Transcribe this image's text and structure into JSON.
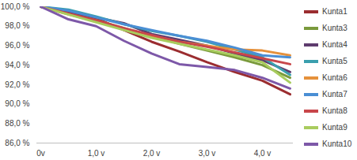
{
  "chart_data": {
    "type": "line",
    "categories": [
      "0v",
      null,
      "1,0 v",
      null,
      "2,0 v",
      null,
      "3,0 v",
      null,
      "4,0 v",
      null
    ],
    "ylim": [
      86,
      100
    ],
    "yticks": [
      {
        "value": 86,
        "label": "86,0 %"
      },
      {
        "value": 88,
        "label": "88,0 %"
      },
      {
        "value": 90,
        "label": "90,0 %"
      },
      {
        "value": 92,
        "label": "92,0 %"
      },
      {
        "value": 94,
        "label": "94,0 %"
      },
      {
        "value": 96,
        "label": "96,0 %"
      },
      {
        "value": 98,
        "label": "98,0 %"
      },
      {
        "value": 100,
        "label": "100,0 %"
      }
    ],
    "grid": false,
    "legend": "right",
    "series": [
      {
        "name": "Kunta1",
        "color": "#9b2d30",
        "values": [
          100,
          99.4,
          98.8,
          97.6,
          96.4,
          95.4,
          94.3,
          93.3,
          92.4,
          91.0
        ]
      },
      {
        "name": "Kunta3",
        "color": "#7a9a3c",
        "values": [
          100,
          99.3,
          98.6,
          97.8,
          97.0,
          96.2,
          95.5,
          94.8,
          94.0,
          92.7
        ]
      },
      {
        "name": "Kunta4",
        "color": "#5e3c6e",
        "values": [
          100,
          99.5,
          98.9,
          98.3,
          97.2,
          96.6,
          96.0,
          95.2,
          94.5,
          93.3
        ]
      },
      {
        "name": "Kunta5",
        "color": "#3a9fae",
        "values": [
          100,
          99.7,
          99.0,
          98.2,
          97.5,
          97.0,
          96.4,
          95.6,
          94.8,
          93.0
        ]
      },
      {
        "name": "Kunta6",
        "color": "#e5913c",
        "values": [
          100,
          99.2,
          98.5,
          97.7,
          97.0,
          96.4,
          96.0,
          95.6,
          95.5,
          95.0
        ]
      },
      {
        "name": "Kunta7",
        "color": "#4a8ed4",
        "values": [
          100,
          99.6,
          98.9,
          98.2,
          97.6,
          97.0,
          96.5,
          95.8,
          95.0,
          94.8
        ]
      },
      {
        "name": "Kunta8",
        "color": "#c8464a",
        "values": [
          100,
          99.3,
          98.6,
          97.8,
          97.1,
          96.4,
          95.9,
          95.3,
          94.7,
          94.1
        ]
      },
      {
        "name": "Kunta9",
        "color": "#a9cc5e",
        "values": [
          100,
          99.2,
          98.4,
          97.6,
          96.8,
          96.2,
          95.6,
          95.0,
          94.3,
          92.2
        ]
      },
      {
        "name": "Kunta10",
        "color": "#7d58a8",
        "values": [
          100,
          98.7,
          98.0,
          96.5,
          95.2,
          94.1,
          93.8,
          93.5,
          92.7,
          91.6
        ]
      }
    ]
  }
}
